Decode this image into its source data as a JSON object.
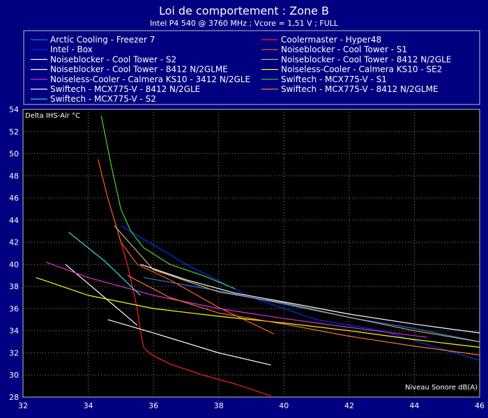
{
  "chart_data": {
    "type": "line",
    "title": "Loi de comportement : Zone B",
    "subtitle": "Intel P4 540 @ 3760 MHz ; Vcore = 1,51 V ; FULL",
    "xlabel": "Niveau Sonore dB(A)",
    "ylabel": "Delta IHS-Air °C",
    "xlim": [
      32,
      46
    ],
    "ylim": [
      28,
      54
    ],
    "x_ticks": [
      32,
      34,
      36,
      38,
      40,
      42,
      44,
      46
    ],
    "y_ticks": [
      28,
      30,
      32,
      34,
      36,
      38,
      40,
      42,
      44,
      46,
      48,
      50,
      52,
      54
    ],
    "grid": true,
    "legend_position": "top",
    "series": [
      {
        "name": "Arctic Cooling - Freezer 7",
        "color": "#2a6fd6",
        "x": [
          35.7,
          38,
          40,
          42,
          44,
          46
        ],
        "y": [
          38.8,
          37.6,
          36.4,
          35.2,
          34.2,
          33.0
        ]
      },
      {
        "name": "Coolermaster - Hyper48",
        "color": "#ff2020",
        "x": [
          34.9,
          35.2,
          35.5,
          35.6,
          35.7,
          35.9,
          36.5,
          37.5,
          38.5,
          39.6
        ],
        "y": [
          43,
          40,
          36,
          34,
          32.5,
          31.9,
          31.0,
          30.0,
          29.2,
          28.1
        ]
      },
      {
        "name": "Intel - Box",
        "color": "#0030ff",
        "x": [
          35.0,
          37,
          39,
          41,
          43,
          45,
          46
        ],
        "y": [
          43.5,
          40,
          37,
          35,
          34,
          32.2,
          31.3
        ]
      },
      {
        "name": "Noiseblocker - Cool Tower - S1",
        "color": "#ff6010",
        "x": [
          34.3,
          34.6,
          35.0,
          35.5,
          36.5,
          38,
          39.7
        ],
        "y": [
          49.5,
          46,
          42,
          40,
          38.6,
          36.1,
          33.7
        ]
      },
      {
        "name": "Noiseblocker - Cool Tower - S2",
        "color": "#ffffff",
        "x": [
          34.6,
          36,
          38,
          39.6
        ],
        "y": [
          35.0,
          33.8,
          32.0,
          30.9
        ]
      },
      {
        "name": "Noiseblocker - Cool Tower - 8412 N/2GLE",
        "color": "#c0b080",
        "x": [
          34.8,
          36,
          38,
          40,
          42,
          44,
          46
        ],
        "y": [
          43.5,
          39.5,
          37.5,
          36.5,
          35.2,
          34.0,
          33.0
        ]
      },
      {
        "name": "Noiseblocker - Cool Tower - 8412 N/2GLME",
        "color": "#ffffff",
        "x": [
          33.3,
          34.5,
          35.5
        ],
        "y": [
          40.0,
          37.0,
          34.5
        ]
      },
      {
        "name": "Noiseless-Cooler - Calmera KS10 - SE2",
        "color": "#ffff00",
        "x": [
          32.4,
          34,
          36,
          38,
          40,
          42,
          44,
          46
        ],
        "y": [
          38.8,
          37.2,
          36.0,
          35.3,
          34.7,
          34.0,
          33.2,
          32.5
        ]
      },
      {
        "name": "Noiseless-Cooler - Calmera KS10 - 3412 N/2GLE",
        "color": "#e030e0",
        "x": [
          32.7,
          34,
          36,
          38,
          40,
          42,
          44.4
        ],
        "y": [
          40.2,
          38.8,
          37.2,
          36.0,
          35.1,
          34.3,
          33.4
        ]
      },
      {
        "name": "Swiftech - MCX775-V - S1",
        "color": "#40d840",
        "x": [
          34.4,
          34.7,
          35.0,
          35.3,
          35.7,
          36.5,
          37.5,
          38.5
        ],
        "y": [
          53.4,
          49,
          45,
          43,
          41.5,
          40,
          39,
          37.8
        ]
      },
      {
        "name": "Swiftech - MCX775-V - 8412 N/2GLE",
        "color": "#ffffff",
        "x": [
          35.6,
          37,
          38.5,
          40,
          42,
          44,
          46
        ],
        "y": [
          40.0,
          38.6,
          37.4,
          36.6,
          35.5,
          34.6,
          33.8
        ]
      },
      {
        "name": "Swiftech - MCX775-V - 8412 N/2GLME",
        "color": "#ff7a30",
        "x": [
          35.2,
          36.5,
          38,
          40,
          42,
          44,
          46
        ],
        "y": [
          39.0,
          37.0,
          35.6,
          34.6,
          33.5,
          32.6,
          31.8
        ]
      },
      {
        "name": "Swiftech - MCX775-V - S2",
        "color": "#40e0e0",
        "x": [
          33.4,
          34.5,
          35.6
        ],
        "y": [
          42.9,
          40.3,
          37.2
        ]
      }
    ]
  }
}
